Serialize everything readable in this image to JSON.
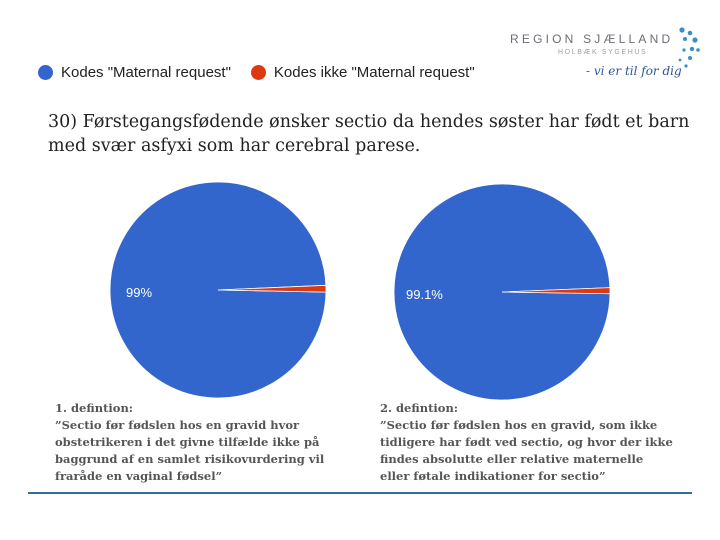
{
  "logo": {
    "name": "REGION SJÆLLAND",
    "sub": "HOLBÆK SYGEHUS",
    "tagline": "- vi er til for dig",
    "dot_color": "#3b8fc6"
  },
  "legend": [
    {
      "label": "Kodes \"Maternal request\"",
      "color": "#3366cc"
    },
    {
      "label": "Kodes ikke \"Maternal request\"",
      "color": "#dc3912"
    }
  ],
  "title": "30) Førstegangsfødende ønsker sectio da hendes søster har født et barn med svær asfyxi som har cerebral parese.",
  "chart_data": [
    {
      "type": "pie",
      "title": "",
      "series": [
        {
          "name": "Kodes \"Maternal request\"",
          "value": 99.0,
          "label": "99%",
          "color": "#3366cc"
        },
        {
          "name": "Kodes ikke \"Maternal request\"",
          "value": 1.0,
          "label": "",
          "color": "#dc3912"
        }
      ]
    },
    {
      "type": "pie",
      "title": "",
      "series": [
        {
          "name": "Kodes \"Maternal request\"",
          "value": 99.1,
          "label": "99.1%",
          "color": "#3366cc"
        },
        {
          "name": "Kodes ikke \"Maternal request\"",
          "value": 0.9,
          "label": "",
          "color": "#dc3912"
        }
      ]
    }
  ],
  "definitions": [
    {
      "lines": [
        "1. defintion:",
        "”Sectio før fødslen hos en gravid hvor",
        "obstetrikeren i det givne tilfælde ikke på",
        "baggrund af en samlet risikovurdering vil",
        "fraråde en vaginal fødsel”"
      ]
    },
    {
      "lines": [
        "2. defintion:",
        "”Sectio før fødslen hos en gravid, som ikke",
        "tidligere har født ved sectio, og hvor der ikke",
        "findes absolutte eller relative maternelle",
        "eller føtale indikationer for sectio”"
      ]
    }
  ]
}
